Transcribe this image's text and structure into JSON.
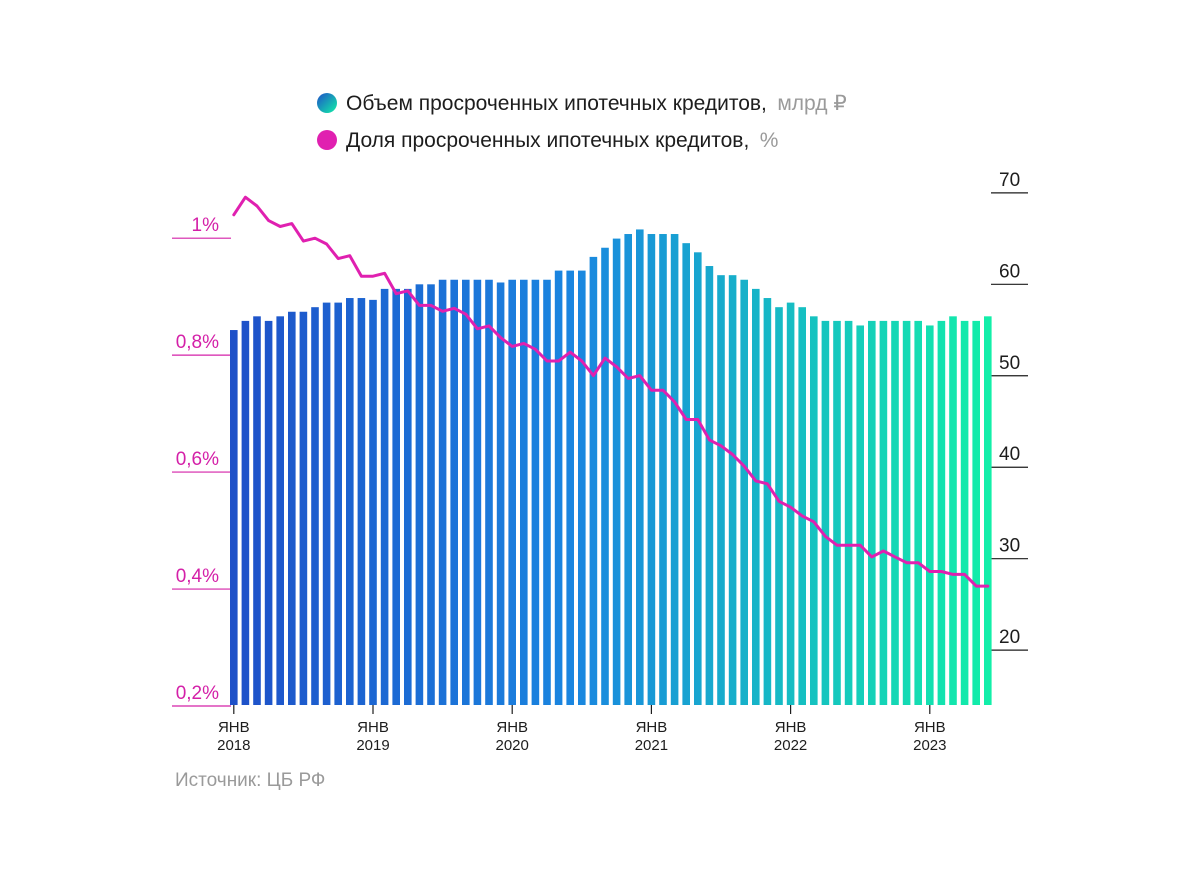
{
  "legend": {
    "bars_label": "Объем просроченных ипотечных кредитов,",
    "bars_unit": "млрд ₽",
    "line_label": "Доля просроченных ипотечных кредитов,",
    "line_unit": "%"
  },
  "source": "Источник: ЦБ РФ",
  "colors": {
    "bar_start": "#1e50c8",
    "bar_mid": "#1a86e0",
    "bar_end": "#12f0a8",
    "line": "#e020b0",
    "left_axis": "#d420a8",
    "right_axis": "#1d1d1d"
  },
  "chart_data": {
    "type": "bar+line",
    "series": [
      {
        "name": "Объем просроченных ипотечных кредитов, млрд ₽",
        "axis": "right",
        "type": "bar",
        "values": [
          55,
          56,
          56.5,
          56,
          56.5,
          57,
          57,
          57.5,
          58,
          58,
          58.5,
          58.5,
          58.3,
          59.5,
          59.5,
          59.5,
          60,
          60,
          60.5,
          60.5,
          60.5,
          60.5,
          60.5,
          60.2,
          60.5,
          60.5,
          60.5,
          60.5,
          61.5,
          61.5,
          61.5,
          63,
          64,
          65,
          65.5,
          66,
          65.5,
          65.5,
          65.5,
          64.5,
          63.5,
          62,
          61,
          61,
          60.5,
          59.5,
          58.5,
          57.5,
          58,
          57.5,
          56.5,
          56,
          56,
          56,
          55.5,
          56,
          56,
          56,
          56,
          56,
          55.5,
          56,
          56.5,
          56,
          56,
          56.5
        ]
      },
      {
        "name": "Доля просроченных ипотечных кредитов, %",
        "axis": "left",
        "type": "line",
        "values": [
          1.04,
          1.07,
          1.055,
          1.03,
          1.02,
          1.025,
          0.995,
          1.0,
          0.99,
          0.965,
          0.97,
          0.935,
          0.935,
          0.94,
          0.905,
          0.91,
          0.885,
          0.885,
          0.875,
          0.88,
          0.87,
          0.845,
          0.85,
          0.83,
          0.815,
          0.82,
          0.81,
          0.79,
          0.79,
          0.805,
          0.79,
          0.765,
          0.795,
          0.78,
          0.76,
          0.765,
          0.74,
          0.74,
          0.72,
          0.69,
          0.69,
          0.655,
          0.645,
          0.63,
          0.61,
          0.585,
          0.58,
          0.55,
          0.54,
          0.525,
          0.515,
          0.49,
          0.475,
          0.475,
          0.475,
          0.455,
          0.465,
          0.455,
          0.445,
          0.445,
          0.43,
          0.43,
          0.425,
          0.425,
          0.405,
          0.405
        ]
      }
    ],
    "left_axis": {
      "ticks": [
        "1%",
        "0,8%",
        "0,6%",
        "0,4%",
        "0,2%"
      ],
      "tick_values": [
        1.0,
        0.8,
        0.6,
        0.4,
        0.2
      ],
      "range": [
        0.2,
        1.12
      ]
    },
    "right_axis": {
      "ticks": [
        "70",
        "60",
        "50",
        "40",
        "30",
        "20"
      ],
      "tick_values": [
        70,
        60,
        50,
        40,
        30,
        20
      ],
      "range": [
        14,
        72.5
      ]
    },
    "x_ticks": [
      {
        "index": 0,
        "top": "ЯНВ",
        "bottom": "2018"
      },
      {
        "index": 12,
        "top": "ЯНВ",
        "bottom": "2019"
      },
      {
        "index": 24,
        "top": "ЯНВ",
        "bottom": "2020"
      },
      {
        "index": 36,
        "top": "ЯНВ",
        "bottom": "2021"
      },
      {
        "index": 48,
        "top": "ЯНВ",
        "bottom": "2022"
      },
      {
        "index": 60,
        "top": "ЯНВ",
        "bottom": "2023"
      }
    ],
    "legend_position": "top"
  }
}
